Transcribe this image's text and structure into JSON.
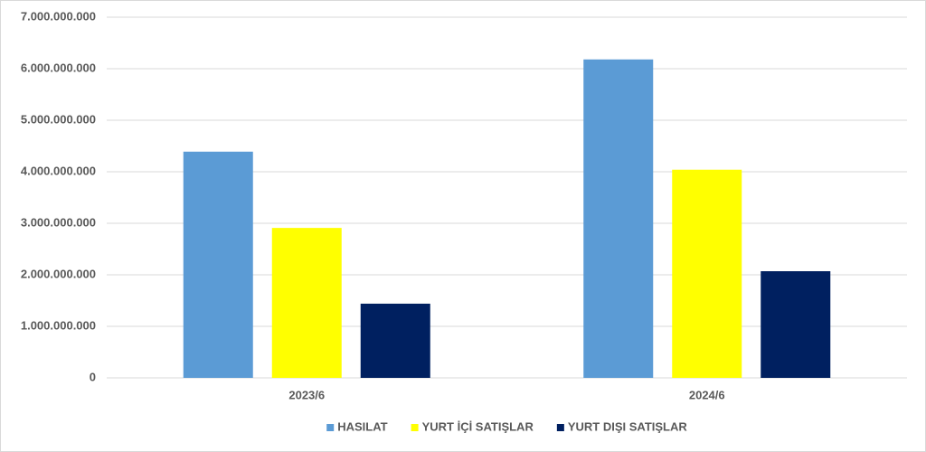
{
  "chart_data": {
    "type": "bar",
    "categories": [
      "2023/6",
      "2024/6"
    ],
    "series": [
      {
        "name": "HASILAT",
        "color": "#5b9bd5",
        "values": [
          4390000000,
          6180000000
        ]
      },
      {
        "name": "YURT İÇİ SATIŞLAR",
        "color": "#ffff00",
        "values": [
          2910000000,
          4040000000
        ]
      },
      {
        "name": "YURT DIŞI SATIŞLAR",
        "color": "#002060",
        "values": [
          1440000000,
          2070000000
        ]
      }
    ],
    "ylim": [
      0,
      7000000000
    ],
    "yticks": [
      0,
      {
        "value": 1000000000,
        "label": "1.000.000.000"
      },
      {
        "value": 2000000000,
        "label": "2.000.000.000"
      },
      {
        "value": 3000000000,
        "label": "3.000.000.000"
      },
      {
        "value": 4000000000,
        "label": "4.000.000.000"
      },
      {
        "value": 5000000000,
        "label": "5.000.000.000"
      },
      {
        "value": 6000000000,
        "label": "6.000.000.000"
      },
      {
        "value": 7000000000,
        "label": "7.000.000.000"
      }
    ],
    "grid": true,
    "legend": "bottom"
  }
}
